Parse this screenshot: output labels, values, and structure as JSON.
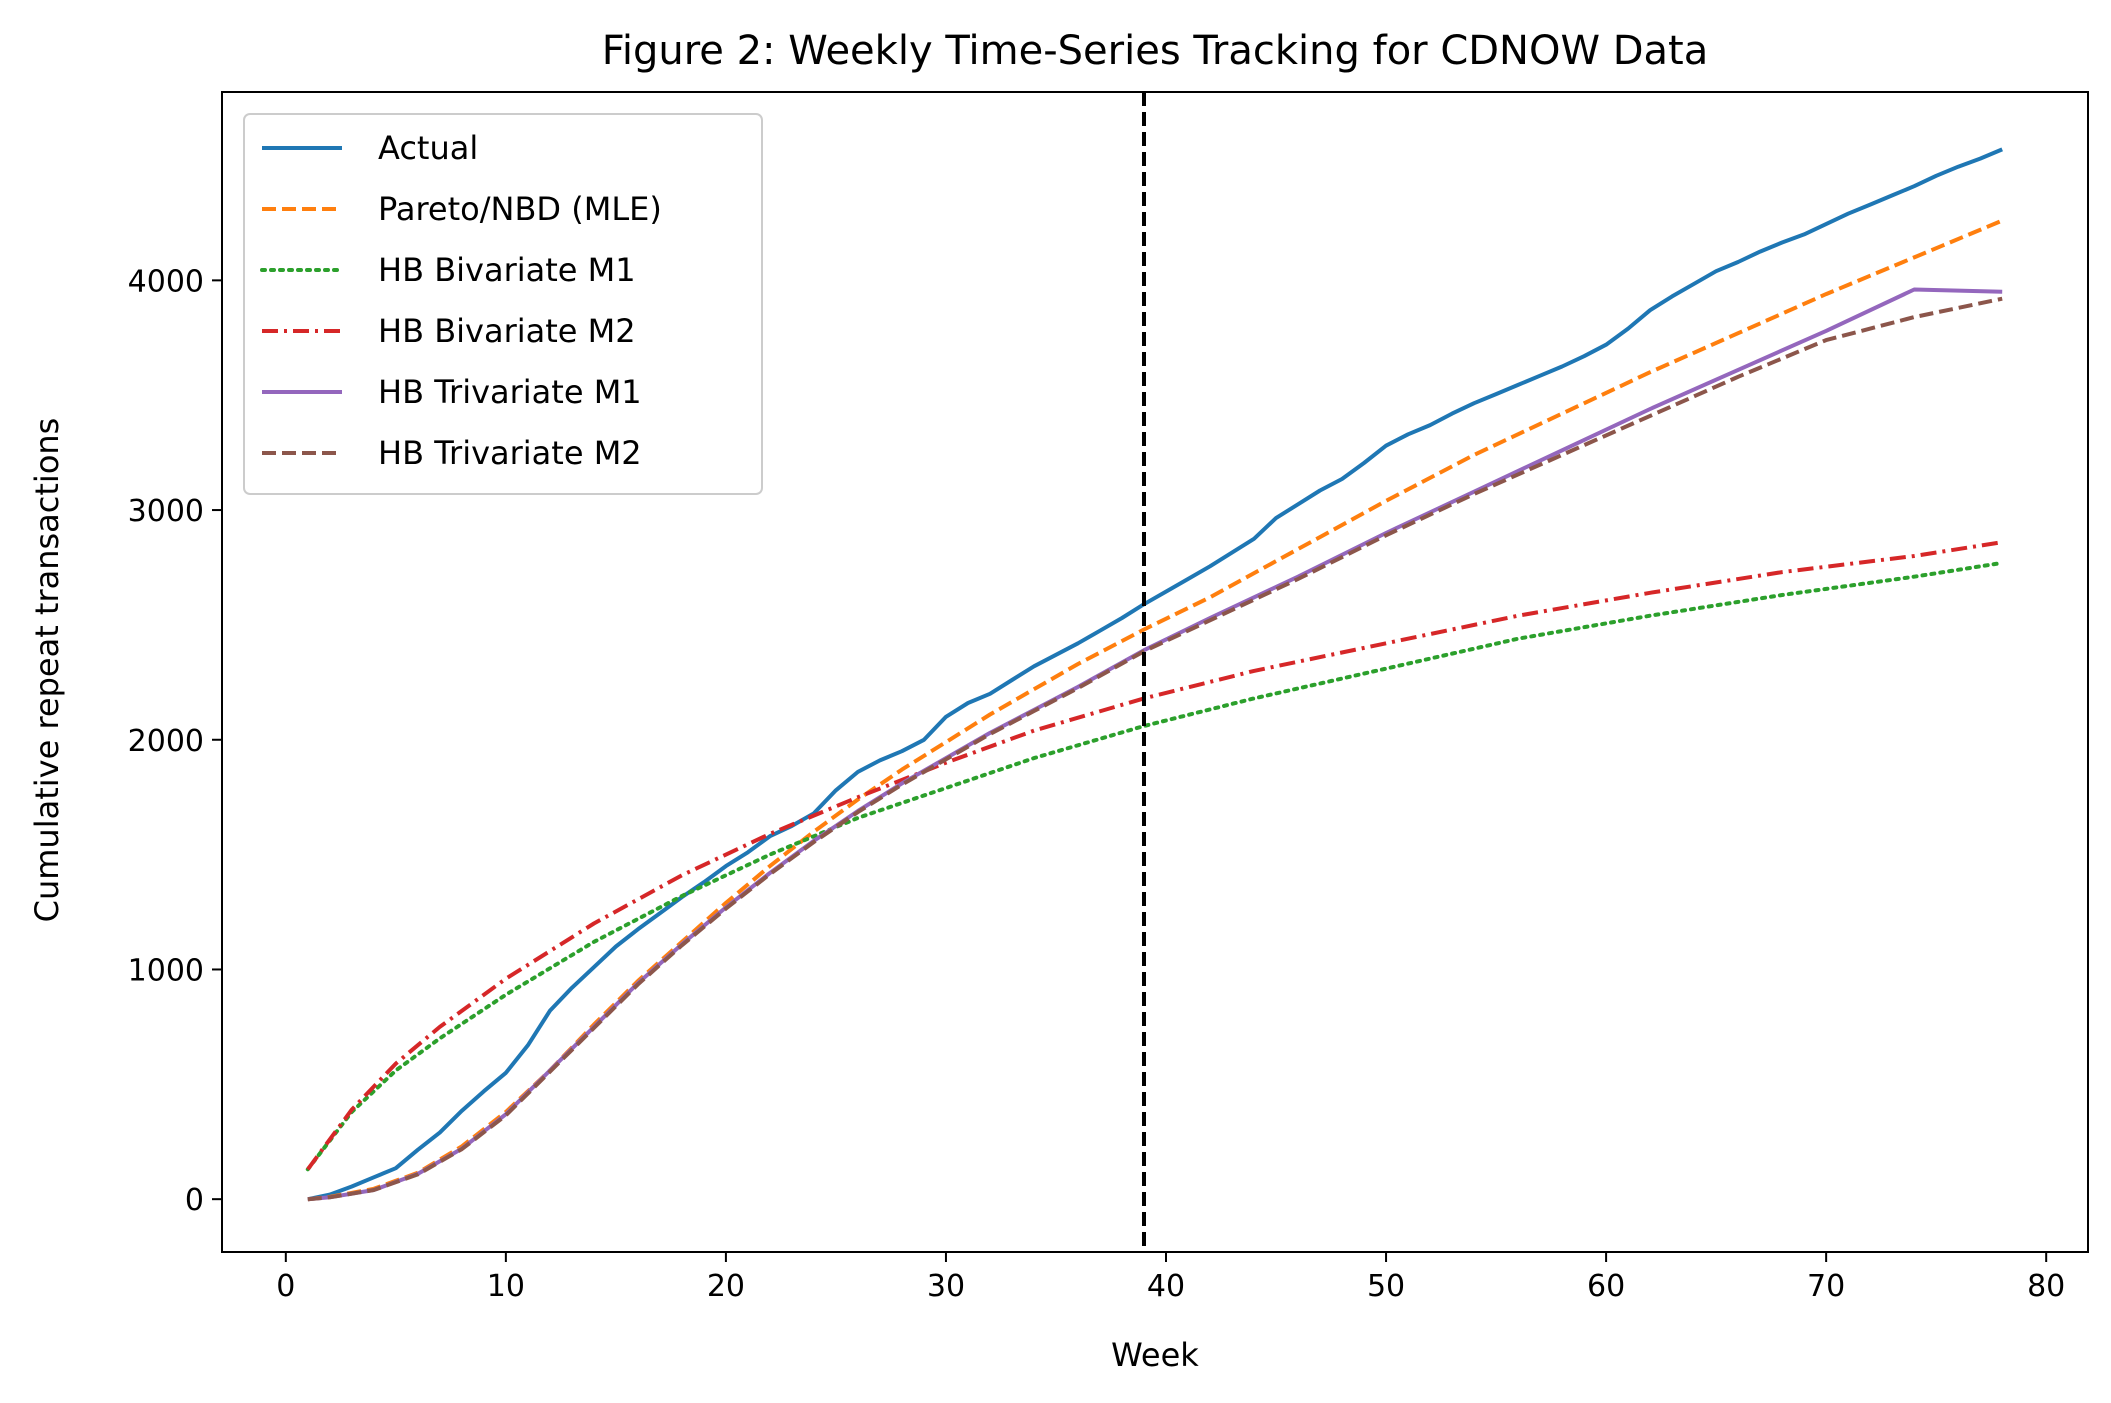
{
  "chart_data": {
    "type": "line",
    "title": "Figure 2: Weekly Time-Series Tracking for CDNOW Data",
    "xlabel": "Week",
    "ylabel": "Cumulative repeat transactions",
    "xlim": [
      -2.9,
      81.9
    ],
    "ylim": [
      -230,
      4820
    ],
    "xticks": [
      0,
      10,
      20,
      30,
      40,
      50,
      60,
      70,
      80
    ],
    "yticks": [
      0,
      1000,
      2000,
      3000,
      4000
    ],
    "grid": false,
    "legend_position": "top-left",
    "vline": {
      "x": 39,
      "style": "dashed",
      "color": "#000000"
    },
    "series": [
      {
        "name": "Actual",
        "color": "#1f77b4",
        "style": "solid",
        "x": [
          1,
          2,
          3,
          4,
          5,
          6,
          7,
          8,
          9,
          10,
          11,
          12,
          13,
          14,
          15,
          16,
          17,
          18,
          19,
          20,
          21,
          22,
          23,
          24,
          25,
          26,
          27,
          28,
          29,
          30,
          31,
          32,
          33,
          34,
          35,
          36,
          37,
          38,
          39,
          40,
          41,
          42,
          43,
          44,
          45,
          46,
          47,
          48,
          49,
          50,
          51,
          52,
          53,
          54,
          55,
          56,
          57,
          58,
          59,
          60,
          61,
          62,
          63,
          64,
          65,
          66,
          67,
          68,
          69,
          70,
          71,
          72,
          73,
          74,
          75,
          76,
          77,
          78
        ],
        "values": [
          0,
          20,
          55,
          95,
          135,
          215,
          290,
          385,
          470,
          550,
          670,
          820,
          920,
          1010,
          1100,
          1175,
          1245,
          1315,
          1380,
          1450,
          1510,
          1580,
          1625,
          1680,
          1780,
          1860,
          1910,
          1950,
          2000,
          2100,
          2160,
          2200,
          2260,
          2320,
          2370,
          2420,
          2475,
          2530,
          2590,
          2645,
          2700,
          2755,
          2815,
          2875,
          2965,
          3025,
          3085,
          3135,
          3205,
          3280,
          3330,
          3370,
          3420,
          3465,
          3505,
          3545,
          3585,
          3625,
          3670,
          3720,
          3790,
          3870,
          3930,
          3985,
          4040,
          4080,
          4125,
          4165,
          4200,
          4245,
          4290,
          4330,
          4370,
          4410,
          4455,
          4495,
          4530,
          4570
        ]
      },
      {
        "name": "Pareto/NBD (MLE)",
        "color": "#ff7f0e",
        "style": "dashed",
        "x": [
          1,
          2,
          4,
          6,
          8,
          10,
          12,
          14,
          16,
          18,
          20,
          22,
          24,
          26,
          28,
          30,
          32,
          34,
          36,
          38,
          39,
          42,
          46,
          50,
          54,
          58,
          62,
          66,
          70,
          74,
          78
        ],
        "values": [
          0,
          10,
          45,
          115,
          230,
          380,
          560,
          760,
          950,
          1120,
          1290,
          1450,
          1600,
          1740,
          1870,
          1990,
          2110,
          2220,
          2330,
          2430,
          2480,
          2620,
          2830,
          3040,
          3240,
          3420,
          3600,
          3770,
          3940,
          4100,
          4260
        ]
      },
      {
        "name": "HB Bivariate M1",
        "color": "#2ca02c",
        "style": "dotted",
        "x": [
          1,
          3,
          5,
          7,
          10,
          14,
          18,
          22,
          26,
          30,
          34,
          39,
          44,
          50,
          56,
          62,
          68,
          74,
          78
        ],
        "values": [
          130,
          380,
          560,
          700,
          890,
          1120,
          1320,
          1500,
          1660,
          1790,
          1920,
          2060,
          2180,
          2310,
          2440,
          2540,
          2630,
          2710,
          2770
        ]
      },
      {
        "name": "HB Bivariate M2",
        "color": "#d62728",
        "style": "dashdot",
        "x": [
          1,
          3,
          5,
          7,
          10,
          14,
          18,
          22,
          26,
          30,
          34,
          39,
          44,
          50,
          56,
          62,
          68,
          74,
          78
        ],
        "values": [
          130,
          390,
          590,
          750,
          960,
          1200,
          1410,
          1590,
          1750,
          1900,
          2040,
          2180,
          2300,
          2420,
          2540,
          2640,
          2730,
          2800,
          2860
        ]
      },
      {
        "name": "HB Trivariate M1",
        "color": "#9467bd",
        "style": "solid",
        "x": [
          1,
          2,
          4,
          6,
          8,
          10,
          12,
          14,
          16,
          18,
          20,
          22,
          24,
          26,
          28,
          30,
          32,
          34,
          36,
          39,
          42,
          46,
          50,
          54,
          58,
          62,
          66,
          70,
          74,
          78
        ],
        "values": [
          0,
          8,
          40,
          110,
          220,
          370,
          560,
          750,
          940,
          1110,
          1270,
          1420,
          1560,
          1690,
          1810,
          1920,
          2030,
          2130,
          2230,
          2390,
          2530,
          2710,
          2900,
          3080,
          3260,
          3440,
          3610,
          3780,
          3960,
          3950
        ]
      },
      {
        "name": "HB Trivariate M2",
        "color": "#8c564b",
        "style": "dashed",
        "x": [
          1,
          2,
          4,
          6,
          8,
          10,
          12,
          14,
          16,
          18,
          20,
          22,
          24,
          26,
          28,
          30,
          32,
          34,
          36,
          39,
          42,
          46,
          50,
          54,
          58,
          62,
          66,
          70,
          74,
          78
        ],
        "values": [
          0,
          8,
          40,
          108,
          218,
          365,
          555,
          745,
          935,
          1105,
          1265,
          1415,
          1555,
          1685,
          1805,
          1915,
          2025,
          2125,
          2225,
          2385,
          2520,
          2700,
          2890,
          3070,
          3240,
          3410,
          3580,
          3740,
          3840,
          3920
        ]
      }
    ]
  }
}
